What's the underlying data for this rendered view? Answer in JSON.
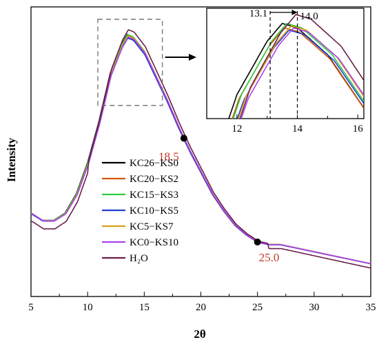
{
  "chart_data": {
    "type": "line",
    "xlabel": "2θ",
    "ylabel": "Intensity",
    "xlim": [
      5,
      35
    ],
    "x_ticks": [
      "5",
      "10",
      "15",
      "20",
      "25",
      "30",
      "35"
    ],
    "y_ticks": [],
    "legend_position": "left-center",
    "series": [
      {
        "name": "KC26−KS0",
        "color": "#000000",
        "offset": 0.0
      },
      {
        "name": "KC20−KS2",
        "color": "#d35400",
        "offset": 0.15
      },
      {
        "name": "KC15−KS3",
        "color": "#2ecc40",
        "offset": 0.3
      },
      {
        "name": "KC10−KS5",
        "color": "#1f3fd1",
        "offset": 0.45
      },
      {
        "name": "KC5−KS7",
        "color": "#d4a017",
        "offset": 0.6
      },
      {
        "name": "KC0−KS10",
        "color": "#b040f0",
        "offset": 0.75
      },
      {
        "name": "H₂O",
        "color": "#6b1f4a",
        "offset": 0.9
      }
    ],
    "profile_x": [
      5,
      6,
      7,
      8,
      9,
      10,
      11,
      12,
      13,
      13.5,
      14,
      15,
      16,
      17,
      18,
      18.5,
      19,
      20,
      21,
      22,
      23,
      24,
      25,
      26,
      27,
      28,
      29,
      30,
      31,
      32,
      33,
      34,
      35
    ],
    "profile_y": [
      0.26,
      0.23,
      0.23,
      0.26,
      0.34,
      0.47,
      0.64,
      0.84,
      0.96,
      1.0,
      0.99,
      0.93,
      0.83,
      0.73,
      0.62,
      0.57,
      0.52,
      0.43,
      0.34,
      0.27,
      0.21,
      0.17,
      0.14,
      0.13,
      0.13,
      0.12,
      0.11,
      0.1,
      0.09,
      0.08,
      0.07,
      0.06,
      0.05
    ],
    "markers": [
      {
        "x": 18.5,
        "label": "18.5"
      },
      {
        "x": 25.0,
        "label": "25.0"
      }
    ],
    "inset": {
      "xlim": [
        11,
        16.2
      ],
      "x_ticks": [
        "12",
        "14",
        "16"
      ],
      "vlines": [
        13.1,
        14.0
      ],
      "vline_labels": [
        "13.1",
        "14.0"
      ]
    }
  }
}
